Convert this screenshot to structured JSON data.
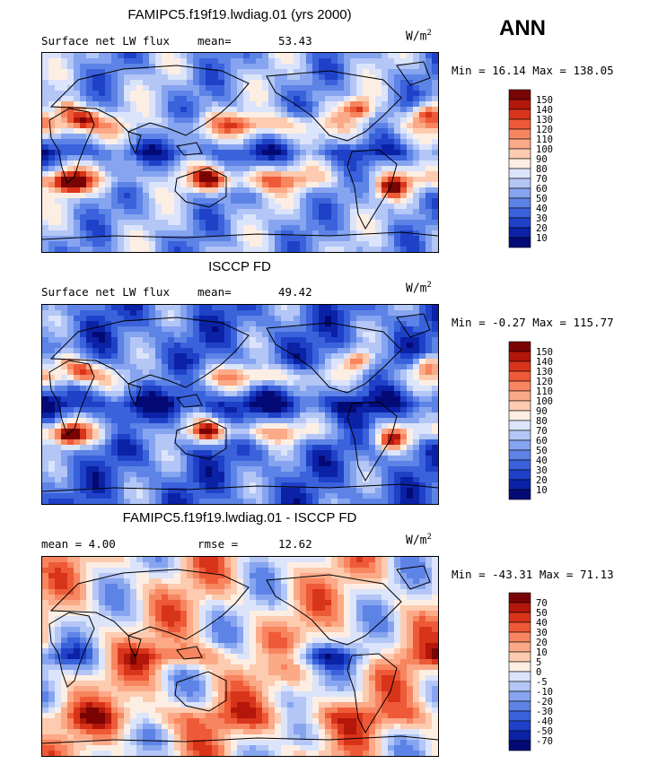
{
  "season": "ANN",
  "units": {
    "base": "W/m",
    "exp": "2"
  },
  "panels": [
    {
      "title": "FAMIPC5.f19f19.lwdiag.01 (yrs 2000)",
      "stat_left": "Surface net LW flux",
      "stat_right_label": "mean=",
      "stat_right_value": "53.43",
      "minmax": "Min =  16.14 Max = 138.05",
      "scale": "abs",
      "levels": [
        "150",
        "140",
        "130",
        "120",
        "110",
        "100",
        "90",
        "80",
        "70",
        "60",
        "50",
        "40",
        "30",
        "20",
        "10"
      ]
    },
    {
      "title": "ISCCP FD",
      "stat_left": "Surface net LW flux",
      "stat_right_label": "mean=",
      "stat_right_value": "49.42",
      "minmax": "Min =  -0.27 Max = 115.77",
      "scale": "abs",
      "levels": [
        "150",
        "140",
        "130",
        "120",
        "110",
        "100",
        "90",
        "80",
        "70",
        "60",
        "50",
        "40",
        "30",
        "20",
        "10"
      ]
    },
    {
      "title": "FAMIPC5.f19f19.lwdiag.01 - ISCCP FD",
      "stat_left": "mean =   4.00",
      "stat_right_label": "rmse =",
      "stat_right_value": "12.62",
      "minmax": "Min = -43.31 Max =  71.13",
      "scale": "diff",
      "levels": [
        "70",
        "50",
        "40",
        "30",
        "20",
        "10",
        "5",
        "0",
        "-5",
        "-10",
        "-20",
        "-30",
        "-40",
        "-50",
        "-70"
      ]
    }
  ],
  "palette": [
    "#7a0403",
    "#b2170a",
    "#d8341a",
    "#ee5a37",
    "#f7855f",
    "#fba987",
    "#fdcbb0",
    "#fdeee4",
    "#dbe4fb",
    "#b3c6f5",
    "#86a4ef",
    "#5d83e6",
    "#3a62db",
    "#1f41c8",
    "#0b22a6",
    "#040a75"
  ]
}
